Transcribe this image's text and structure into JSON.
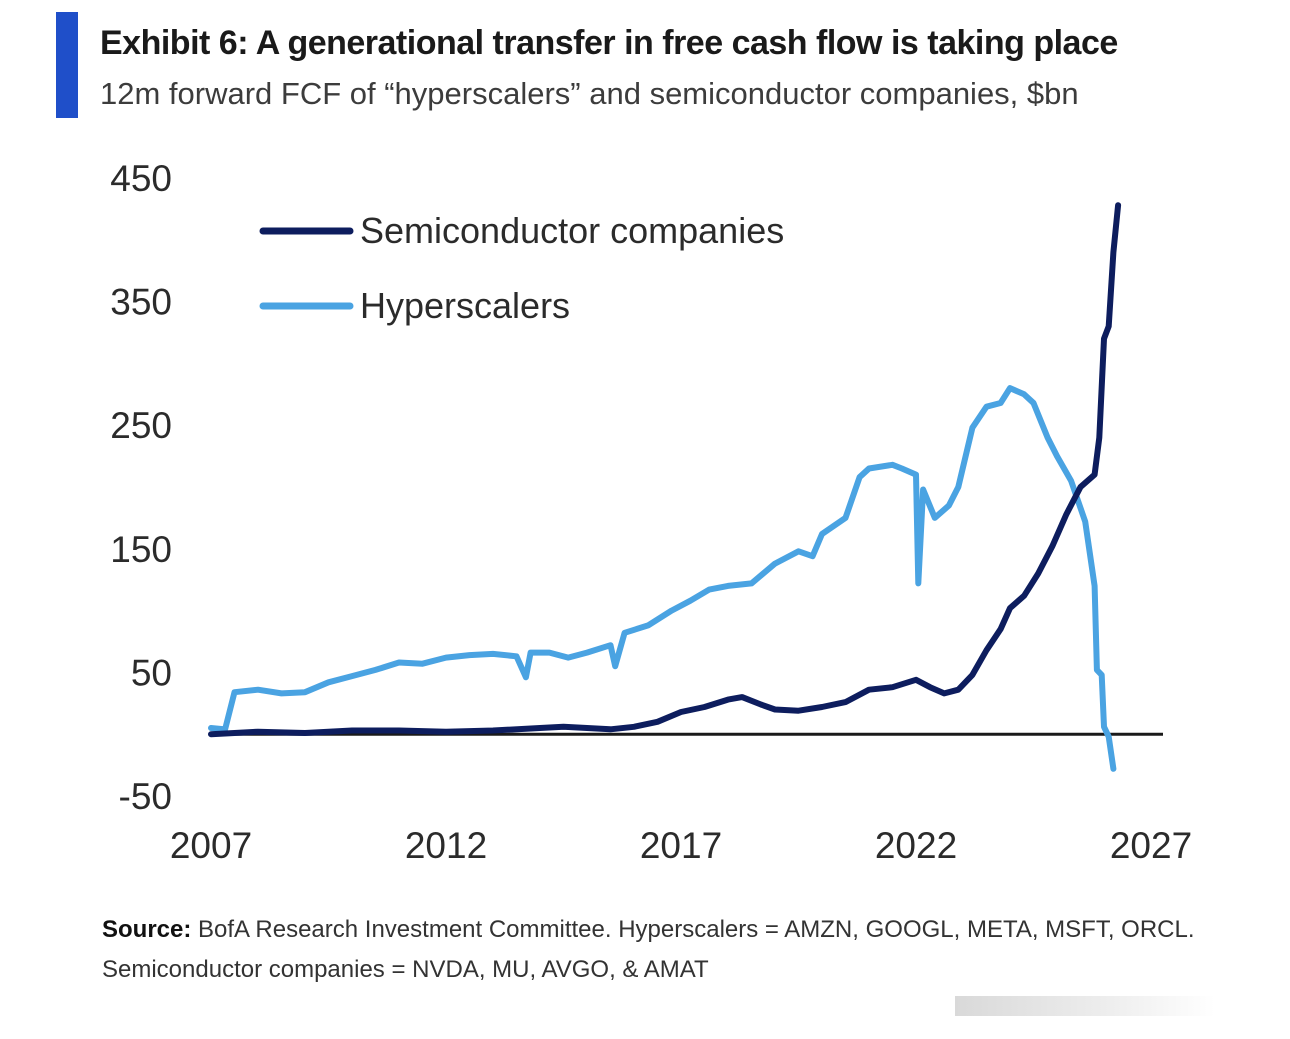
{
  "header": {
    "title": "Exhibit 6: A generational transfer in free cash flow is taking place",
    "subtitle": "12m forward FCF of “hyperscalers” and semiconductor companies, $bn"
  },
  "colors": {
    "accent": "#1f4fc9",
    "semiconductor": "#0d1d5e",
    "hyperscalers": "#4aa3e2",
    "zero_line": "#1a1a1a",
    "text": "#2b2b2b"
  },
  "footer": {
    "source_label": "Source:",
    "source_line1": "BofA Research Investment Committee. Hyperscalers = AMZN, GOOGL, META, MSFT, ORCL.",
    "source_line2": "Semiconductor companies = NVDA, MU, AVGO, & AMAT"
  },
  "chart_data": {
    "type": "line",
    "title": "",
    "xlabel": "",
    "ylabel": "",
    "xlim": [
      2007,
      2027
    ],
    "ylim": [
      -50,
      450
    ],
    "x_ticks": [
      "2007",
      "2012",
      "2017",
      "2022",
      "2027"
    ],
    "y_ticks": [
      "450",
      "350",
      "250",
      "150",
      "50",
      "-50"
    ],
    "grid": false,
    "zero_line": true,
    "legend_position": "top-left",
    "series": [
      {
        "name": "Semiconductor companies",
        "points": [
          [
            2007.0,
            0
          ],
          [
            2007.5,
            1
          ],
          [
            2008.0,
            2
          ],
          [
            2009.0,
            1
          ],
          [
            2010.0,
            3
          ],
          [
            2011.0,
            3
          ],
          [
            2012.0,
            2
          ],
          [
            2013.0,
            3
          ],
          [
            2014.0,
            5
          ],
          [
            2014.5,
            6
          ],
          [
            2015.5,
            4
          ],
          [
            2016.0,
            6
          ],
          [
            2016.5,
            10
          ],
          [
            2017.0,
            18
          ],
          [
            2017.5,
            22
          ],
          [
            2018.0,
            28
          ],
          [
            2018.3,
            30
          ],
          [
            2018.7,
            24
          ],
          [
            2019.0,
            20
          ],
          [
            2019.5,
            19
          ],
          [
            2020.0,
            22
          ],
          [
            2020.5,
            26
          ],
          [
            2021.0,
            36
          ],
          [
            2021.5,
            38
          ],
          [
            2022.0,
            44
          ],
          [
            2022.3,
            38
          ],
          [
            2022.6,
            33
          ],
          [
            2022.9,
            36
          ],
          [
            2023.2,
            48
          ],
          [
            2023.5,
            68
          ],
          [
            2023.8,
            85
          ],
          [
            2024.0,
            102
          ],
          [
            2024.3,
            112
          ],
          [
            2024.6,
            130
          ],
          [
            2024.9,
            152
          ],
          [
            2025.2,
            178
          ],
          [
            2025.5,
            200
          ],
          [
            2025.8,
            210
          ],
          [
            2025.9,
            240
          ],
          [
            2026.0,
            320
          ],
          [
            2026.1,
            330
          ],
          [
            2026.2,
            390
          ],
          [
            2026.3,
            428
          ]
        ]
      },
      {
        "name": "Hyperscalers",
        "points": [
          [
            2007.0,
            5
          ],
          [
            2007.3,
            4
          ],
          [
            2007.5,
            34
          ],
          [
            2008.0,
            36
          ],
          [
            2008.5,
            33
          ],
          [
            2009.0,
            34
          ],
          [
            2009.5,
            42
          ],
          [
            2010.0,
            47
          ],
          [
            2010.5,
            52
          ],
          [
            2011.0,
            58
          ],
          [
            2011.5,
            57
          ],
          [
            2012.0,
            62
          ],
          [
            2012.5,
            64
          ],
          [
            2013.0,
            65
          ],
          [
            2013.5,
            63
          ],
          [
            2013.7,
            46
          ],
          [
            2013.8,
            66
          ],
          [
            2014.2,
            66
          ],
          [
            2014.6,
            62
          ],
          [
            2015.0,
            66
          ],
          [
            2015.5,
            72
          ],
          [
            2015.6,
            55
          ],
          [
            2015.8,
            82
          ],
          [
            2016.3,
            88
          ],
          [
            2016.8,
            100
          ],
          [
            2017.2,
            108
          ],
          [
            2017.6,
            117
          ],
          [
            2018.0,
            120
          ],
          [
            2018.5,
            122
          ],
          [
            2019.0,
            138
          ],
          [
            2019.5,
            148
          ],
          [
            2019.8,
            144
          ],
          [
            2020.0,
            162
          ],
          [
            2020.5,
            175
          ],
          [
            2020.8,
            208
          ],
          [
            2021.0,
            215
          ],
          [
            2021.5,
            218
          ],
          [
            2021.7,
            215
          ],
          [
            2022.0,
            210
          ],
          [
            2022.05,
            122
          ],
          [
            2022.15,
            198
          ],
          [
            2022.4,
            175
          ],
          [
            2022.7,
            185
          ],
          [
            2022.9,
            200
          ],
          [
            2023.2,
            248
          ],
          [
            2023.5,
            265
          ],
          [
            2023.8,
            268
          ],
          [
            2024.0,
            280
          ],
          [
            2024.3,
            275
          ],
          [
            2024.5,
            268
          ],
          [
            2024.8,
            240
          ],
          [
            2025.0,
            225
          ],
          [
            2025.3,
            205
          ],
          [
            2025.6,
            172
          ],
          [
            2025.8,
            120
          ],
          [
            2025.85,
            52
          ],
          [
            2025.95,
            48
          ],
          [
            2026.0,
            6
          ],
          [
            2026.1,
            -2
          ],
          [
            2026.2,
            -28
          ]
        ]
      }
    ]
  }
}
